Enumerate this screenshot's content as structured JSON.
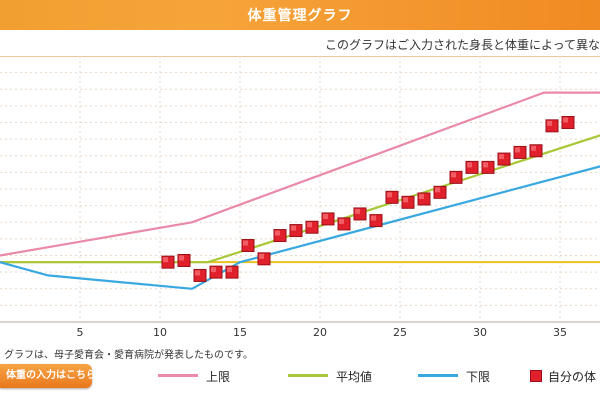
{
  "header": {
    "title": "体重管理グラフ"
  },
  "subtitle": "このグラフはご入力された身長と体重によって異な",
  "footnote": "グラフは、母子愛育会・愛育病院が発表したものです。",
  "input_button": {
    "label": "体重の入力はこちら"
  },
  "legend": [
    {
      "label": "上限",
      "color": "#e88aa8"
    },
    {
      "label": "平均値",
      "color": "#a8c838"
    },
    {
      "label": "下限",
      "color": "#3aa8e0"
    },
    {
      "label": "自分の体",
      "color": "#e0202a"
    }
  ],
  "chart_data": {
    "type": "line",
    "xlabel": "",
    "ylabel": "",
    "xlim": [
      0,
      40
    ],
    "ylim": [
      0,
      16
    ],
    "xticks": [
      5,
      10,
      15,
      20,
      25,
      30,
      35
    ],
    "grid": true,
    "reference_line": {
      "y": 3.6,
      "color": "#e8c020"
    },
    "series": [
      {
        "name": "上限",
        "color": "#e88aa8",
        "x": [
          0,
          6,
          12,
          34,
          40
        ],
        "y": [
          4.0,
          5.0,
          6.0,
          13.8,
          13.8
        ]
      },
      {
        "name": "平均値",
        "color": "#a8c838",
        "x": [
          0,
          13,
          40
        ],
        "y": [
          3.6,
          3.6,
          12.0
        ]
      },
      {
        "name": "下限",
        "color": "#3aa8e0",
        "x": [
          0,
          3,
          12,
          15,
          40
        ],
        "y": [
          3.6,
          2.8,
          2.0,
          3.6,
          10.0
        ]
      },
      {
        "name": "自分の体",
        "color": "#e0202a",
        "type": "scatter",
        "x": [
          10.5,
          11.5,
          12.5,
          13.5,
          14.5,
          15.5,
          16.5,
          17.5,
          18.5,
          19.5,
          20.5,
          21.5,
          22.5,
          23.5,
          24.5,
          25.5,
          26.5,
          27.5,
          28.5,
          29.5,
          30.5,
          31.5,
          32.5,
          33.5,
          34.5,
          35.5
        ],
        "y": [
          3.6,
          3.7,
          2.8,
          3.0,
          3.0,
          4.6,
          3.8,
          5.2,
          5.5,
          5.7,
          6.2,
          5.9,
          6.5,
          6.1,
          7.5,
          7.2,
          7.4,
          7.8,
          8.7,
          9.3,
          9.3,
          9.8,
          10.2,
          10.3,
          11.8,
          12.0
        ]
      }
    ]
  }
}
